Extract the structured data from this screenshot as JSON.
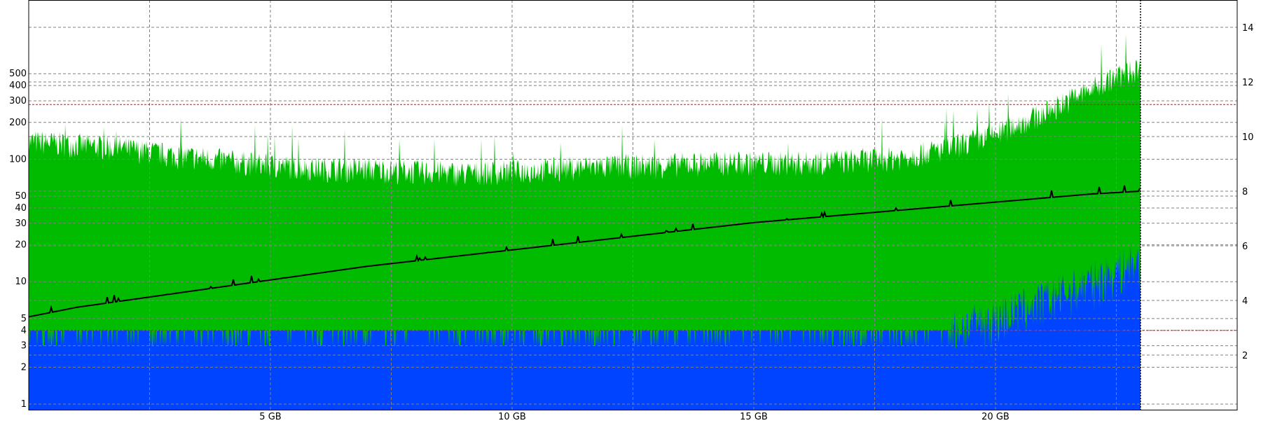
{
  "chart_data": {
    "type": "area",
    "title": "",
    "xlabel": "",
    "ylabel": "",
    "x_unit": "GB",
    "xlim": [
      0,
      25
    ],
    "x_data_end": 23,
    "x_ticks": [
      {
        "value": 5,
        "label": "5 GB"
      },
      {
        "value": 10,
        "label": "10 GB"
      },
      {
        "value": 15,
        "label": "15 GB"
      },
      {
        "value": 20,
        "label": "20 GB"
      }
    ],
    "x_minor_grid": [
      2.5,
      7.5,
      12.5,
      17.5,
      22.5
    ],
    "y_left": {
      "scale": "log",
      "lim": [
        0.9,
        2000
      ],
      "ticks": [
        1,
        2,
        3,
        4,
        5,
        10,
        20,
        30,
        40,
        50,
        100,
        200,
        300,
        400,
        500
      ]
    },
    "y_right": {
      "scale": "linear",
      "lim": [
        0,
        15
      ],
      "ticks": [
        2,
        4,
        6,
        8,
        10,
        12,
        14
      ]
    },
    "reference_lines": [
      {
        "axis": "left",
        "value": 280,
        "color": "#ff0000"
      },
      {
        "axis": "left",
        "value": 4,
        "color": "#ff0000"
      }
    ],
    "grid": true,
    "legend": "none",
    "series": [
      {
        "kind": "area",
        "axis": "left",
        "color": "#00bb00",
        "x": [
          0,
          1,
          2,
          3,
          4,
          5,
          6,
          7,
          8,
          9,
          10,
          11,
          12,
          13,
          14,
          15,
          16,
          17,
          18,
          19,
          20,
          21,
          22,
          23
        ],
        "values": [
          150,
          140,
          130,
          115,
          105,
          95,
          90,
          88,
          85,
          82,
          85,
          90,
          95,
          95,
          100,
          100,
          100,
          105,
          110,
          130,
          170,
          250,
          400,
          600
        ]
      },
      {
        "kind": "area",
        "axis": "left",
        "color": "#0044ff",
        "x": [
          0,
          1,
          2,
          3,
          4,
          5,
          6,
          7,
          8,
          9,
          10,
          11,
          12,
          13,
          14,
          15,
          16,
          17,
          18,
          19,
          20,
          21,
          22,
          23
        ],
        "values": [
          4,
          4,
          4,
          4,
          4,
          4,
          4,
          4,
          4,
          4,
          4,
          4,
          4,
          4,
          4,
          4,
          4,
          4,
          4,
          4,
          5,
          7,
          10,
          15
        ]
      },
      {
        "kind": "line",
        "axis": "right",
        "color": "#000000",
        "x": [
          0,
          1,
          2,
          3,
          4,
          5,
          6,
          7,
          8,
          9,
          10,
          11,
          12,
          13,
          14,
          15,
          16,
          17,
          18,
          19,
          20,
          21,
          22,
          23
        ],
        "values": [
          3.4,
          3.75,
          4.0,
          4.25,
          4.5,
          4.75,
          5.0,
          5.25,
          5.45,
          5.65,
          5.85,
          6.05,
          6.25,
          6.45,
          6.65,
          6.85,
          7.0,
          7.15,
          7.3,
          7.45,
          7.6,
          7.75,
          7.9,
          8.0
        ]
      }
    ]
  }
}
